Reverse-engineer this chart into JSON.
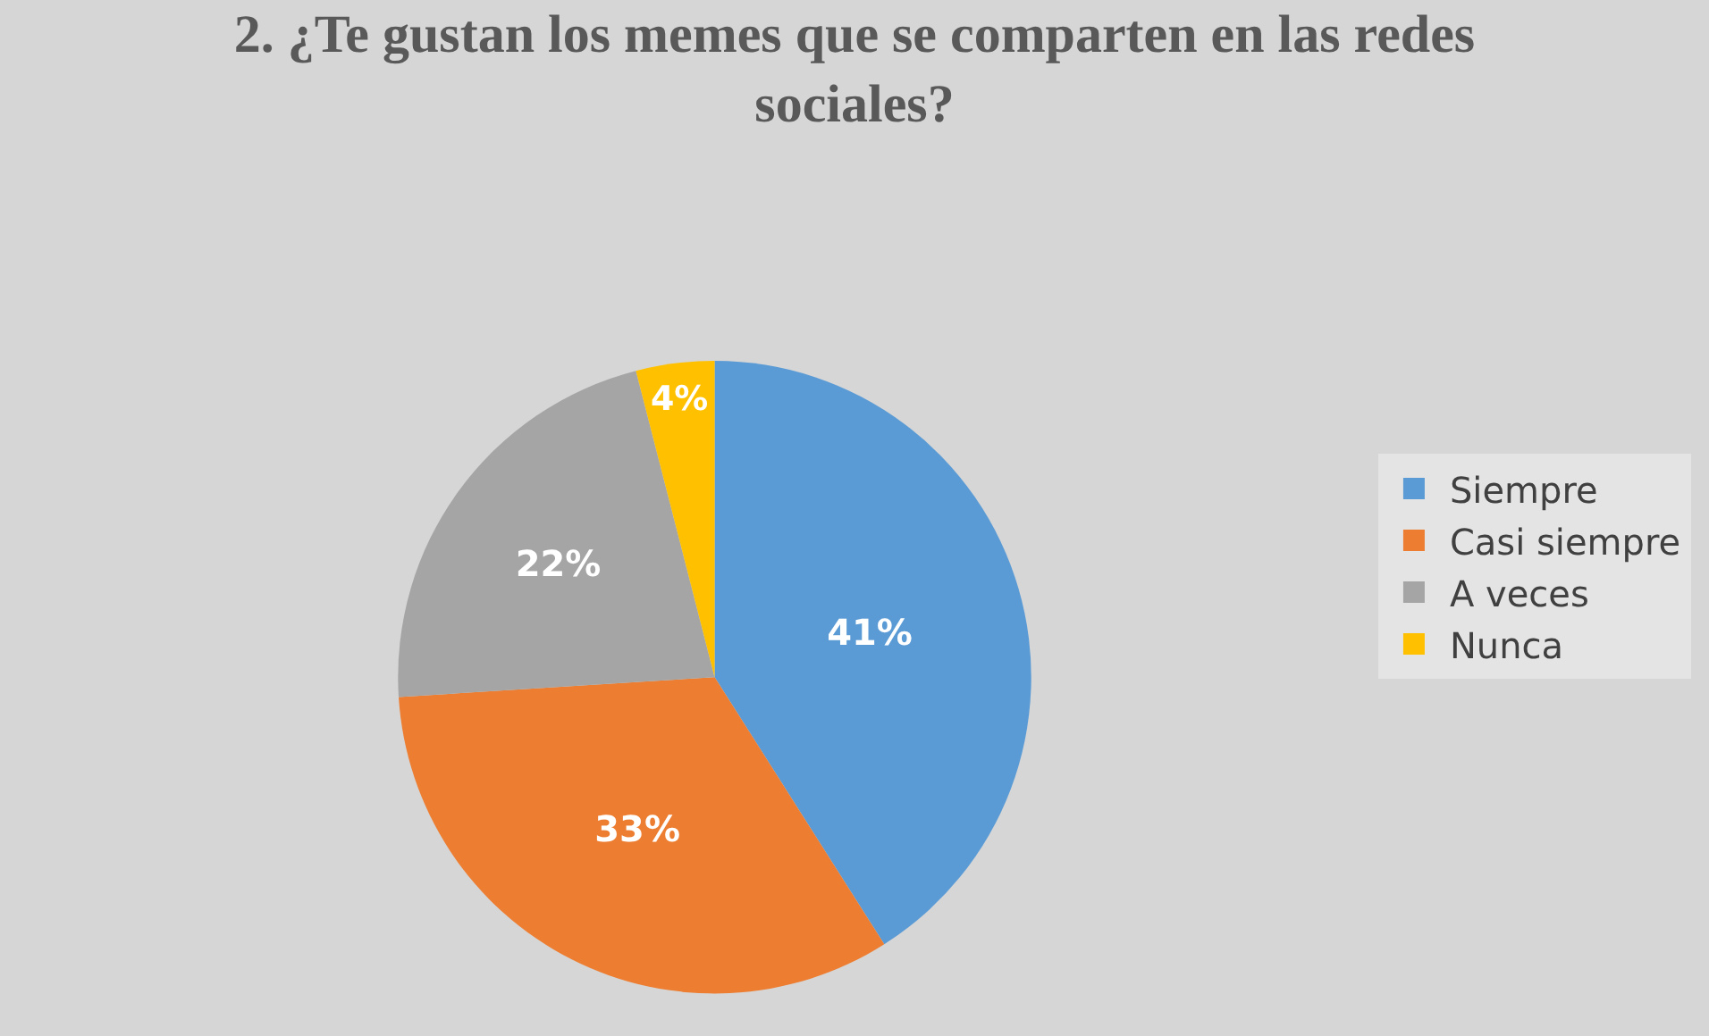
{
  "chart_data": {
    "type": "pie",
    "title": "2. ¿Te gustan los memes que se comparten en las redes sociales?",
    "categories": [
      "Siempre",
      "Casi siempre",
      "A veces",
      "Nunca"
    ],
    "values": [
      41,
      33,
      22,
      4
    ],
    "colors": [
      "#5b9bd5",
      "#ed7d31",
      "#a5a5a5",
      "#ffc000"
    ],
    "value_labels": [
      "41%",
      "33%",
      "22%",
      "4%"
    ],
    "legend": "right"
  }
}
